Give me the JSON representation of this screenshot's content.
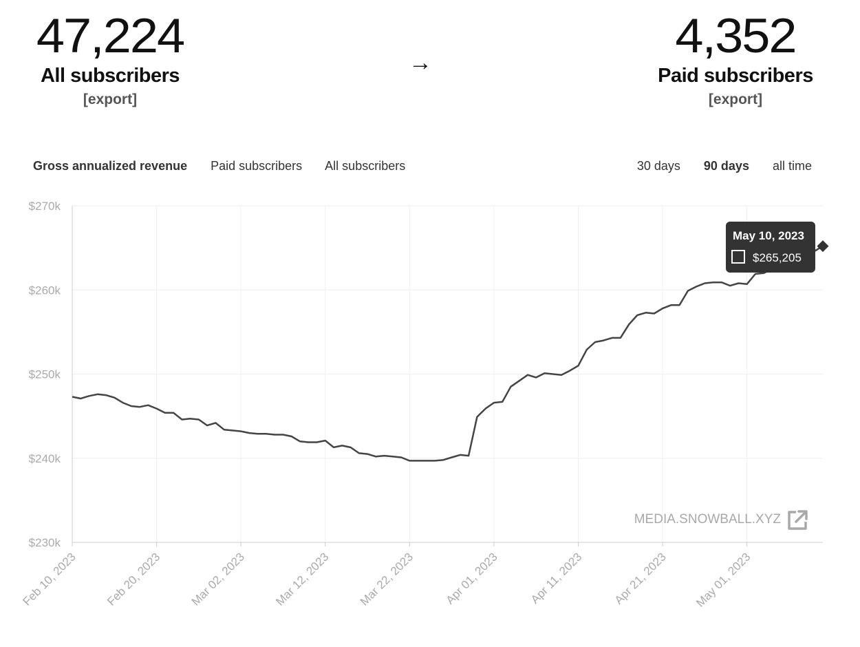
{
  "stats": {
    "all": {
      "number": "47,224",
      "label": "All subscribers",
      "export": "[export]"
    },
    "arrow": "→",
    "paid": {
      "number": "4,352",
      "label": "Paid subscribers",
      "export": "[export]"
    }
  },
  "tabs": [
    "Gross annualized revenue",
    "Paid subscribers",
    "All subscribers"
  ],
  "active_tab": 0,
  "ranges": [
    "30 days",
    "90 days",
    "all time"
  ],
  "active_range": 1,
  "watermark": "MEDIA.SNOWBALL.XYZ",
  "icons": {
    "external": "external-link-icon",
    "legend": "legend-square-icon"
  },
  "colors": {
    "line": "#444444",
    "tooltip_bg": "#333333",
    "grid": "#eeeeee"
  },
  "chart_data": {
    "type": "line",
    "title": "",
    "xlabel": "",
    "ylabel": "",
    "ylim": [
      230000,
      270000
    ],
    "y_ticks": [
      230000,
      240000,
      250000,
      260000,
      270000
    ],
    "y_tick_labels": [
      "$230k",
      "$240k",
      "$250k",
      "$260k",
      "$270k"
    ],
    "x_tick_labels": [
      "Feb 10, 2023",
      "Feb 20, 2023",
      "Mar 02, 2023",
      "Mar 12, 2023",
      "Mar 22, 2023",
      "Apr 01, 2023",
      "Apr 11, 2023",
      "Apr 21, 2023",
      "May 01, 2023"
    ],
    "x_ticks": [
      "2023-02-10",
      "2023-02-20",
      "2023-03-02",
      "2023-03-12",
      "2023-03-22",
      "2023-04-01",
      "2023-04-11",
      "2023-04-21",
      "2023-05-01"
    ],
    "x_range": [
      "2023-02-10",
      "2023-05-10"
    ],
    "grid": true,
    "series": [
      {
        "x": [
          "2023-02-10",
          "2023-02-11",
          "2023-02-12",
          "2023-02-13",
          "2023-02-14",
          "2023-02-15",
          "2023-02-16",
          "2023-02-17",
          "2023-02-18",
          "2023-02-19",
          "2023-02-20",
          "2023-02-21",
          "2023-02-22",
          "2023-02-23",
          "2023-02-24",
          "2023-02-25",
          "2023-02-26",
          "2023-02-27",
          "2023-02-28",
          "2023-03-01",
          "2023-03-02",
          "2023-03-03",
          "2023-03-04",
          "2023-03-05",
          "2023-03-06",
          "2023-03-07",
          "2023-03-08",
          "2023-03-09",
          "2023-03-10",
          "2023-03-11",
          "2023-03-12",
          "2023-03-13",
          "2023-03-14",
          "2023-03-15",
          "2023-03-16",
          "2023-03-17",
          "2023-03-18",
          "2023-03-19",
          "2023-03-20",
          "2023-03-21",
          "2023-03-22",
          "2023-03-23",
          "2023-03-24",
          "2023-03-25",
          "2023-03-26",
          "2023-03-27",
          "2023-03-28",
          "2023-03-29",
          "2023-03-30",
          "2023-03-31",
          "2023-04-01",
          "2023-04-02",
          "2023-04-03",
          "2023-04-04",
          "2023-04-05",
          "2023-04-06",
          "2023-04-07",
          "2023-04-08",
          "2023-04-09",
          "2023-04-10",
          "2023-04-11",
          "2023-04-12",
          "2023-04-13",
          "2023-04-14",
          "2023-04-15",
          "2023-04-16",
          "2023-04-17",
          "2023-04-18",
          "2023-04-19",
          "2023-04-20",
          "2023-04-21",
          "2023-04-22",
          "2023-04-23",
          "2023-04-24",
          "2023-04-25",
          "2023-04-26",
          "2023-04-27",
          "2023-04-28",
          "2023-04-29",
          "2023-04-30",
          "2023-05-01",
          "2023-05-02",
          "2023-05-03",
          "2023-05-04",
          "2023-05-05",
          "2023-05-06",
          "2023-05-07",
          "2023-05-08",
          "2023-05-09",
          "2023-05-10"
        ],
        "values": [
          247300,
          247100,
          247400,
          247600,
          247500,
          247200,
          246600,
          246200,
          246100,
          246300,
          245900,
          245400,
          245400,
          244600,
          244700,
          244600,
          243900,
          244200,
          243400,
          243300,
          243200,
          243000,
          242900,
          242900,
          242800,
          242800,
          242600,
          242000,
          241900,
          241900,
          242100,
          241300,
          241500,
          241300,
          240600,
          240500,
          240200,
          240300,
          240200,
          240100,
          239700,
          239700,
          239700,
          239700,
          239800,
          240100,
          240400,
          240300,
          244900,
          245900,
          246600,
          246700,
          248500,
          249200,
          249900,
          249600,
          250100,
          250000,
          249900,
          250400,
          251000,
          252900,
          253800,
          254000,
          254300,
          254300,
          255900,
          257000,
          257300,
          257200,
          257800,
          258200,
          258200,
          259900,
          260400,
          260800,
          260900,
          260900,
          260500,
          260800,
          260700,
          261900,
          262000,
          262500,
          262900,
          262400,
          262600,
          263400,
          264600,
          265205
        ]
      }
    ],
    "tooltip": {
      "date": "May 10, 2023",
      "value": "$265,205"
    }
  }
}
